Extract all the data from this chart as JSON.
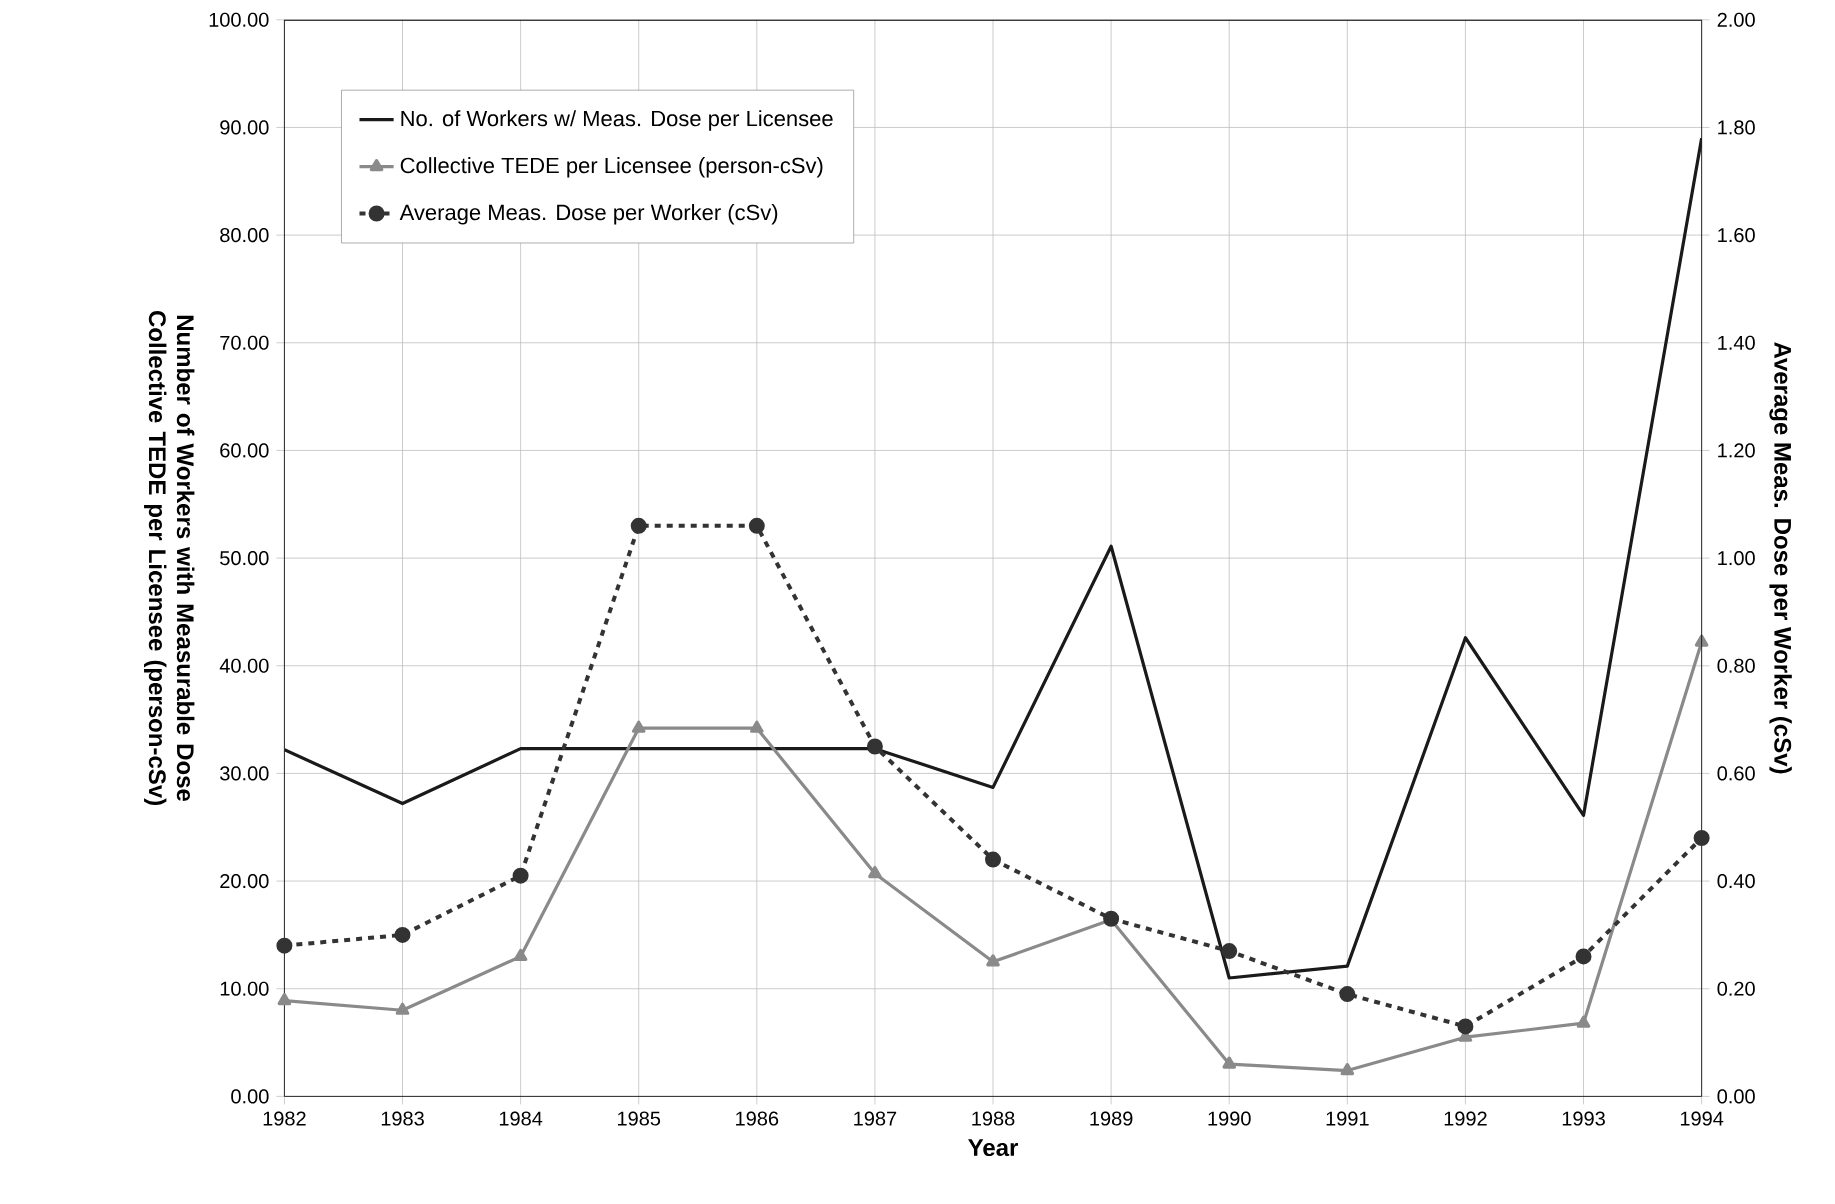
{
  "chart_data": {
    "type": "line",
    "xlabel": "Year",
    "ylabel": "Number of Workers with Measurable Dose Collective TEDE per Licensee (person-cSv)",
    "y2label": "Average Meas. Dose per Worker (cSv)",
    "categories": [
      "1982",
      "1983",
      "1984",
      "1985",
      "1986",
      "1987",
      "1988",
      "1989",
      "1990",
      "1991",
      "1992",
      "1993",
      "1994"
    ],
    "series": [
      {
        "name": "No. of Workers w/ Meas. Dose per Licensee",
        "color": "#1a1a1a",
        "marker": "none",
        "line_style": "solid",
        "values": [
          32.2,
          27.2,
          32.3,
          32.3,
          32.3,
          32.3,
          28.7,
          51.1,
          11.0,
          12.1,
          42.6,
          26.1,
          89.0
        ]
      },
      {
        "name": "Collective TEDE per Licensee (person-cSv)",
        "color": "#8a8a8a",
        "marker": "triangle",
        "line_style": "solid",
        "values": [
          8.9,
          8.0,
          13.0,
          34.2,
          34.2,
          20.7,
          12.5,
          16.4,
          3.0,
          2.4,
          5.5,
          6.8,
          42.2
        ]
      },
      {
        "name": "Average Meas. Dose per Worker (cSv)",
        "color": "#333333",
        "marker": "circle",
        "line_style": "dashed",
        "axis": "y2",
        "values": [
          0.28,
          0.3,
          0.41,
          1.06,
          1.06,
          0.65,
          0.44,
          0.33,
          0.27,
          0.19,
          0.13,
          0.26,
          0.48
        ]
      }
    ],
    "ylim": [
      0,
      100
    ],
    "yticks": [
      {
        "value": 0,
        "label": "0.00"
      },
      {
        "value": 10,
        "label": "10.00"
      },
      {
        "value": 20,
        "label": "20.00"
      },
      {
        "value": 30,
        "label": "30.00"
      },
      {
        "value": 40,
        "label": "40.00"
      },
      {
        "value": 50,
        "label": "50.00"
      },
      {
        "value": 60,
        "label": "60.00"
      },
      {
        "value": 70,
        "label": "70.00"
      },
      {
        "value": 80,
        "label": "80.00"
      },
      {
        "value": 90,
        "label": "90.00"
      },
      {
        "value": 100,
        "label": "100.00"
      }
    ],
    "y2lim": [
      0,
      2
    ],
    "y2ticks": [
      {
        "value": 0,
        "label": "0.00"
      },
      {
        "value": 0.2,
        "label": "0.20"
      },
      {
        "value": 0.4,
        "label": "0.40"
      },
      {
        "value": 0.6,
        "label": "0.60"
      },
      {
        "value": 0.8,
        "label": "0.80"
      },
      {
        "value": 1.0,
        "label": "1.00"
      },
      {
        "value": 1.2,
        "label": "1.20"
      },
      {
        "value": 1.4,
        "label": "1.40"
      },
      {
        "value": 1.6,
        "label": "1.60"
      },
      {
        "value": 1.8,
        "label": "1.80"
      },
      {
        "value": 2.0,
        "label": "2.00"
      }
    ],
    "grid": true,
    "legend": "top left"
  }
}
